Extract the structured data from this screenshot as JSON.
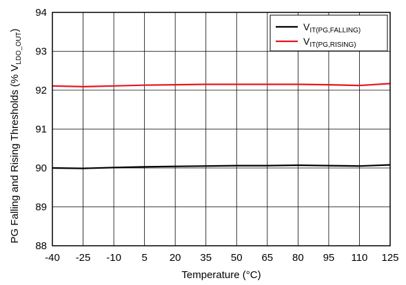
{
  "chart_data": {
    "type": "line",
    "title": "",
    "xlabel": "Temperature (°C)",
    "ylabel": {
      "prefix": "PG Falling and Rising Thresholds (% V",
      "sub": "LDO_OUT",
      "suffix": ")"
    },
    "xlim": [
      -40,
      125
    ],
    "ylim": [
      88,
      94
    ],
    "xticks": [
      "-40",
      "-25",
      "-10",
      "5",
      "20",
      "35",
      "50",
      "65",
      "80",
      "95",
      "110",
      "125"
    ],
    "yticks": [
      "88",
      "89",
      "90",
      "91",
      "92",
      "93",
      "94"
    ],
    "grid": true,
    "legend_position": "top-right",
    "series": [
      {
        "name": {
          "main": "V",
          "sub": "IT(PG,FALLING)"
        },
        "color": "#000000",
        "x": [
          -40,
          -25,
          -10,
          5,
          20,
          35,
          50,
          65,
          80,
          95,
          110,
          125
        ],
        "y": [
          90.0,
          89.99,
          90.01,
          90.03,
          90.04,
          90.05,
          90.06,
          90.06,
          90.07,
          90.06,
          90.05,
          90.08
        ]
      },
      {
        "name": {
          "main": "V",
          "sub": "IT(PG,RISING)"
        },
        "color": "#e8141d",
        "x": [
          -40,
          -25,
          -10,
          5,
          20,
          35,
          50,
          65,
          80,
          95,
          110,
          125
        ],
        "y": [
          92.11,
          92.09,
          92.11,
          92.13,
          92.14,
          92.15,
          92.15,
          92.15,
          92.15,
          92.14,
          92.12,
          92.17
        ]
      }
    ]
  }
}
